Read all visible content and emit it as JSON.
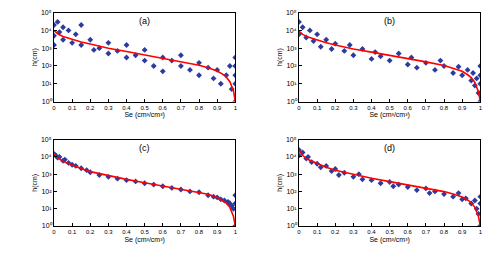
{
  "chart_data": [
    {
      "type": "scatter",
      "title": "(a)",
      "x_label": "Se (cm³/cm³)",
      "y_label": "h(cm)",
      "log": "y",
      "grid": false,
      "xlim": [
        0,
        1
      ],
      "ylim": [
        1,
        100000
      ],
      "xticks": [
        0,
        0.1,
        0.2,
        0.3,
        0.4,
        0.5,
        0.6,
        0.7,
        0.8,
        0.9,
        1
      ],
      "yticks": [
        {
          "value": 1,
          "label": "10⁰"
        },
        {
          "value": 10,
          "label": "10¹"
        },
        {
          "value": 100,
          "label": "10²"
        },
        {
          "value": 1000,
          "label": "10³"
        },
        {
          "value": 10000,
          "label": "10⁴"
        },
        {
          "value": 100000,
          "label": "10⁵"
        }
      ],
      "series": [
        {
          "type": "scatter",
          "color": "#2b3c9e",
          "marker": "diamond",
          "x": [
            0,
            0,
            0,
            0.02,
            0.03,
            0.05,
            0.05,
            0.08,
            0.1,
            0.12,
            0.15,
            0.15,
            0.2,
            0.22,
            0.25,
            0.3,
            0.3,
            0.35,
            0.4,
            0.4,
            0.45,
            0.5,
            0.5,
            0.55,
            0.6,
            0.6,
            0.65,
            0.7,
            0.7,
            0.75,
            0.8,
            0.8,
            0.85,
            0.88,
            0.9,
            0.92,
            0.95,
            0.97,
            0.98,
            1,
            1,
            1,
            1,
            1
          ],
          "values": [
            20000,
            5000,
            1500,
            30000,
            8000,
            15000,
            3000,
            10000,
            2000,
            6000,
            1500,
            20000,
            3000,
            800,
            1000,
            2000,
            500,
            700,
            300,
            1500,
            400,
            200,
            800,
            100,
            300,
            50,
            200,
            100,
            400,
            60,
            150,
            30,
            80,
            20,
            60,
            10,
            30,
            100,
            5,
            300,
            100,
            30,
            10,
            1
          ]
        },
        {
          "type": "line",
          "color": "#ff0000",
          "x": [
            0,
            0.02,
            0.05,
            0.1,
            0.15,
            0.2,
            0.3,
            0.4,
            0.5,
            0.6,
            0.7,
            0.8,
            0.85,
            0.9,
            0.93,
            0.95,
            0.97,
            0.98,
            0.99,
            1
          ],
          "values": [
            10000,
            6500,
            4500,
            3000,
            2200,
            1700,
            1000,
            650,
            420,
            280,
            180,
            110,
            80,
            52,
            35,
            24,
            13,
            8,
            4,
            1
          ]
        }
      ]
    },
    {
      "type": "scatter",
      "title": "(b)",
      "x_label": "Se (cm³/cm³)",
      "y_label": "h(cm)",
      "log": "y",
      "grid": false,
      "xlim": [
        0,
        1
      ],
      "ylim": [
        1,
        100000
      ],
      "xticks": [
        0,
        0.1,
        0.2,
        0.3,
        0.4,
        0.5,
        0.6,
        0.7,
        0.8,
        0.9,
        1
      ],
      "yticks": [
        {
          "value": 1,
          "label": "10⁰"
        },
        {
          "value": 10,
          "label": "10¹"
        },
        {
          "value": 100,
          "label": "10²"
        },
        {
          "value": 1000,
          "label": "10³"
        },
        {
          "value": 10000,
          "label": "10⁴"
        },
        {
          "value": 100000,
          "label": "10⁵"
        }
      ],
      "series": [
        {
          "type": "scatter",
          "color": "#2b3c9e",
          "marker": "diamond",
          "x": [
            0,
            0,
            0.02,
            0.04,
            0.06,
            0.08,
            0.1,
            0.12,
            0.15,
            0.18,
            0.2,
            0.25,
            0.28,
            0.3,
            0.35,
            0.4,
            0.42,
            0.45,
            0.5,
            0.55,
            0.6,
            0.62,
            0.65,
            0.7,
            0.75,
            0.78,
            0.8,
            0.85,
            0.88,
            0.9,
            0.93,
            0.95,
            0.96,
            0.97,
            0.98,
            0.99,
            1,
            1,
            1,
            1,
            1
          ],
          "values": [
            30000,
            6000,
            15000,
            4000,
            10000,
            2500,
            6000,
            1200,
            3000,
            900,
            1800,
            700,
            1500,
            400,
            900,
            250,
            600,
            350,
            200,
            500,
            120,
            300,
            80,
            150,
            60,
            200,
            100,
            40,
            90,
            30,
            60,
            15,
            40,
            8,
            20,
            3,
            100,
            30,
            10,
            3,
            1
          ]
        },
        {
          "type": "line",
          "color": "#ff0000",
          "x": [
            0,
            0.02,
            0.05,
            0.1,
            0.15,
            0.2,
            0.3,
            0.4,
            0.5,
            0.6,
            0.7,
            0.8,
            0.85,
            0.9,
            0.93,
            0.95,
            0.97,
            0.98,
            0.99,
            1
          ],
          "values": [
            9000,
            6000,
            4200,
            2800,
            2000,
            1500,
            900,
            600,
            400,
            270,
            170,
            105,
            75,
            50,
            32,
            22,
            12,
            7,
            3.5,
            1
          ]
        }
      ]
    },
    {
      "type": "scatter",
      "title": "(c)",
      "x_label": "Se (cm³/cm³)",
      "y_label": "h(cm)",
      "log": "y",
      "grid": false,
      "xlim": [
        0,
        1
      ],
      "ylim": [
        1,
        100000
      ],
      "xticks": [
        0,
        0.1,
        0.2,
        0.3,
        0.4,
        0.5,
        0.6,
        0.7,
        0.8,
        0.9,
        1
      ],
      "yticks": [
        {
          "value": 1,
          "label": "10⁰"
        },
        {
          "value": 10,
          "label": "10¹"
        },
        {
          "value": 100,
          "label": "10²"
        },
        {
          "value": 1000,
          "label": "10³"
        },
        {
          "value": 10000,
          "label": "10⁴"
        },
        {
          "value": 100000,
          "label": "10⁵"
        }
      ],
      "series": [
        {
          "type": "scatter",
          "color": "#2b3c9e",
          "marker": "diamond",
          "x": [
            0,
            0.01,
            0.02,
            0.03,
            0.05,
            0.06,
            0.08,
            0.1,
            0.12,
            0.15,
            0.18,
            0.2,
            0.25,
            0.3,
            0.35,
            0.4,
            0.45,
            0.5,
            0.55,
            0.6,
            0.65,
            0.7,
            0.75,
            0.8,
            0.85,
            0.88,
            0.9,
            0.92,
            0.94,
            0.96,
            0.97,
            0.98,
            0.99,
            1,
            1,
            1
          ],
          "values": [
            15000,
            12000,
            9000,
            10000,
            6000,
            7000,
            4500,
            3500,
            3000,
            2200,
            1700,
            1300,
            900,
            700,
            550,
            450,
            380,
            300,
            250,
            200,
            160,
            130,
            100,
            90,
            60,
            50,
            45,
            35,
            30,
            25,
            20,
            15,
            10,
            60,
            20,
            1
          ]
        },
        {
          "type": "line",
          "color": "#ff0000",
          "x": [
            0,
            0.02,
            0.05,
            0.1,
            0.15,
            0.2,
            0.3,
            0.4,
            0.5,
            0.6,
            0.7,
            0.8,
            0.85,
            0.9,
            0.93,
            0.95,
            0.97,
            0.98,
            0.99,
            1
          ],
          "values": [
            15000,
            9000,
            5500,
            3300,
            2100,
            1400,
            800,
            500,
            320,
            210,
            140,
            90,
            68,
            45,
            30,
            21,
            12,
            7,
            3.5,
            1
          ]
        }
      ]
    },
    {
      "type": "scatter",
      "title": "(d)",
      "x_label": "Se (cm³/cm³)",
      "y_label": "h(cm)",
      "log": "y",
      "grid": false,
      "xlim": [
        0,
        1
      ],
      "ylim": [
        1,
        100000
      ],
      "xticks": [
        0,
        0.1,
        0.2,
        0.3,
        0.4,
        0.5,
        0.6,
        0.7,
        0.8,
        0.9,
        1
      ],
      "yticks": [
        {
          "value": 1,
          "label": "10⁰"
        },
        {
          "value": 10,
          "label": "10¹"
        },
        {
          "value": 100,
          "label": "10²"
        },
        {
          "value": 1000,
          "label": "10³"
        },
        {
          "value": 10000,
          "label": "10⁴"
        },
        {
          "value": 100000,
          "label": "10⁵"
        }
      ],
      "series": [
        {
          "type": "scatter",
          "color": "#2b3c9e",
          "marker": "diamond",
          "x": [
            0,
            0,
            0.02,
            0.04,
            0.05,
            0.07,
            0.1,
            0.12,
            0.15,
            0.18,
            0.2,
            0.22,
            0.25,
            0.3,
            0.33,
            0.35,
            0.4,
            0.45,
            0.5,
            0.52,
            0.55,
            0.6,
            0.65,
            0.7,
            0.72,
            0.75,
            0.8,
            0.85,
            0.88,
            0.9,
            0.92,
            0.95,
            0.97,
            0.98,
            0.99,
            1,
            1,
            1
          ],
          "values": [
            25000,
            12000,
            18000,
            8000,
            10000,
            5000,
            4000,
            2500,
            3000,
            1500,
            2000,
            900,
            1200,
            700,
            1000,
            500,
            450,
            300,
            350,
            200,
            250,
            180,
            120,
            150,
            80,
            100,
            70,
            50,
            80,
            35,
            40,
            20,
            30,
            10,
            5,
            50,
            20,
            1
          ]
        },
        {
          "type": "line",
          "color": "#ff0000",
          "x": [
            0,
            0.02,
            0.05,
            0.1,
            0.15,
            0.2,
            0.3,
            0.4,
            0.5,
            0.6,
            0.7,
            0.8,
            0.85,
            0.9,
            0.93,
            0.95,
            0.97,
            0.98,
            0.99,
            1
          ],
          "values": [
            25000,
            12000,
            7000,
            4000,
            2500,
            1700,
            950,
            580,
            370,
            240,
            155,
            98,
            72,
            48,
            32,
            22,
            12,
            7,
            3.5,
            1
          ]
        }
      ]
    }
  ]
}
